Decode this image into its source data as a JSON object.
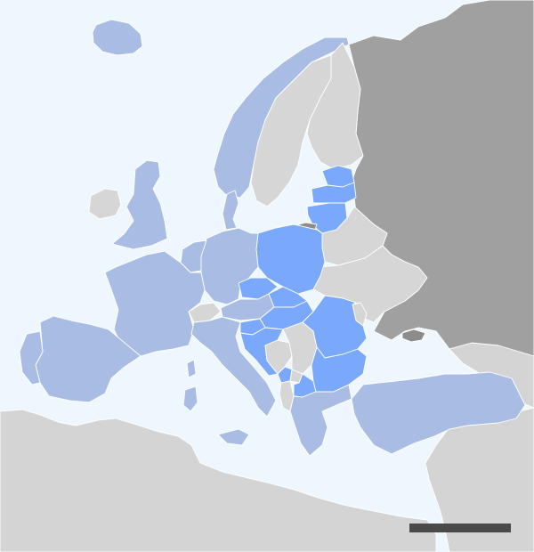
{
  "colors": {
    "sea": "#eef7fd",
    "non_eu_land": "#d4d4d4",
    "russia": "#a0a0a0",
    "group_a_western_members": "#a9bde4",
    "group_b_central_eastern_members": "#7aa9fb",
    "group_c_other_european": "#d6d6d6",
    "group_d_small_territories": "#8c8c8c"
  },
  "regions": {
    "group_a": [
      "iceland",
      "norway",
      "united-kingdom",
      "ireland",
      "france",
      "spain",
      "portugal",
      "germany",
      "benelux",
      "denmark",
      "italy",
      "austria",
      "sardinia",
      "corsica",
      "sicily",
      "greece",
      "turkey"
    ],
    "group_b": [
      "estonia",
      "latvia",
      "lithuania",
      "poland",
      "czechia",
      "slovakia",
      "hungary",
      "slovenia",
      "croatia",
      "romania",
      "bulgaria",
      "montenegro",
      "north-macedonia"
    ],
    "group_c": [
      "sweden",
      "finland",
      "belarus",
      "ukraine",
      "moldova",
      "switzerland",
      "serbia",
      "bosnia",
      "albania",
      "kosovo",
      "caucasus",
      "north-africa",
      "middle-east"
    ],
    "group_d": [
      "kaliningrad",
      "crimea"
    ]
  },
  "scale_bar": {
    "visible": true
  }
}
